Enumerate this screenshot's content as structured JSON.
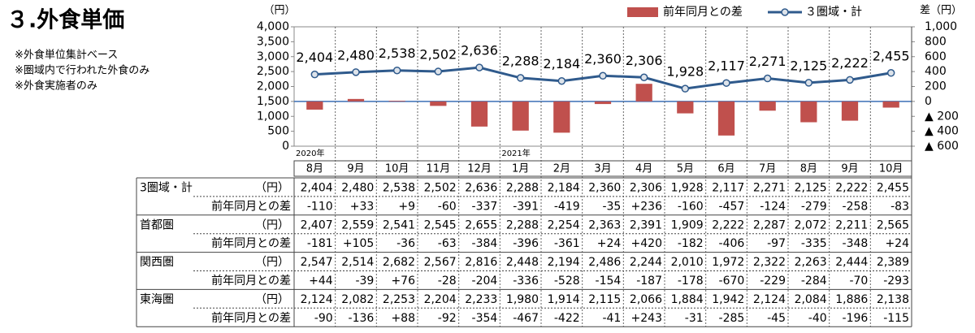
{
  "title": "３.外食単価",
  "notes": [
    "※外食単位集計ベース",
    "※圏域内で行われた外食のみ",
    "※外食実施者のみ"
  ],
  "chart_data": {
    "type": "combo",
    "y_label": "（円）",
    "y2_label": "差（円）",
    "categories": [
      "8月",
      "9月",
      "10月",
      "11月",
      "12月",
      "1月",
      "2月",
      "3月",
      "4月",
      "5月",
      "6月",
      "7月",
      "8月",
      "9月",
      "10月"
    ],
    "years": [
      "2020年",
      null,
      null,
      null,
      null,
      "2021年",
      null,
      null,
      null,
      null,
      null,
      null,
      null,
      null,
      null
    ],
    "ylim": [
      0,
      4000
    ],
    "yticks": [
      0,
      500,
      {
        "value": 1000,
        "label": "1,000"
      },
      {
        "value": 1500,
        "label": "1,500"
      },
      {
        "value": 2000,
        "label": "2,000"
      },
      {
        "value": 2500,
        "label": "2,500"
      },
      {
        "value": 3000,
        "label": "3,000"
      },
      {
        "value": 3500,
        "label": "3,500"
      },
      {
        "value": 4000,
        "label": "4,000"
      }
    ],
    "y2lim": [
      -600,
      1000
    ],
    "y2ticks": [
      {
        "value": 1000,
        "label": "1,000"
      },
      800,
      600,
      400,
      200,
      0,
      {
        "value": -200,
        "label": "▲ 200"
      },
      {
        "value": -400,
        "label": "▲ 400"
      },
      {
        "value": -600,
        "label": "▲ 600"
      }
    ],
    "series": [
      {
        "name": "前年同月との差",
        "type": "bar",
        "axis": "y2",
        "color": "#c0504d",
        "values": [
          -110,
          33,
          9,
          -60,
          -337,
          -391,
          -419,
          -35,
          236,
          -160,
          -457,
          -124,
          -279,
          -258,
          -83
        ]
      },
      {
        "name": "３圏域・計",
        "type": "line",
        "color": "#2f5a8c",
        "values": [
          2404,
          2480,
          2538,
          2502,
          2636,
          2288,
          2184,
          2360,
          2306,
          1928,
          2117,
          2271,
          2125,
          2222,
          2455
        ],
        "value_labels": [
          "2,404",
          "2,480",
          "2,538",
          "2,502",
          "2,636",
          "2,288",
          "2,184",
          "2,360",
          "2,306",
          "1,928",
          "2,117",
          "2,271",
          "2,125",
          "2,222",
          "2,455"
        ]
      }
    ]
  },
  "table": {
    "rows": [
      {
        "label": "3圏域・計",
        "unit": "（円）",
        "cells": [
          "2,404",
          "2,480",
          "2,538",
          "2,502",
          "2,636",
          "2,288",
          "2,184",
          "2,360",
          "2,306",
          "1,928",
          "2,117",
          "2,271",
          "2,125",
          "2,222",
          "2,455"
        ]
      },
      {
        "label": "前年同月との差",
        "cells": [
          "-110",
          "+33",
          "+9",
          "-60",
          "-337",
          "-391",
          "-419",
          "-35",
          "+236",
          "-160",
          "-457",
          "-124",
          "-279",
          "-258",
          "-83"
        ]
      },
      {
        "label": "首都圏",
        "unit": "（円）",
        "cells": [
          "2,407",
          "2,559",
          "2,541",
          "2,545",
          "2,655",
          "2,288",
          "2,254",
          "2,363",
          "2,391",
          "1,909",
          "2,222",
          "2,287",
          "2,072",
          "2,211",
          "2,565"
        ]
      },
      {
        "label": "前年同月との差",
        "cells": [
          "-181",
          "+105",
          "-36",
          "-63",
          "-384",
          "-396",
          "-361",
          "+24",
          "+420",
          "-182",
          "-406",
          "-97",
          "-335",
          "-348",
          "+24"
        ]
      },
      {
        "label": "関西圏",
        "unit": "（円）",
        "cells": [
          "2,547",
          "2,514",
          "2,682",
          "2,567",
          "2,816",
          "2,448",
          "2,194",
          "2,486",
          "2,244",
          "2,010",
          "1,972",
          "2,322",
          "2,263",
          "2,444",
          "2,389"
        ]
      },
      {
        "label": "前年同月との差",
        "cells": [
          "+44",
          "-39",
          "+76",
          "-28",
          "-204",
          "-336",
          "-528",
          "-154",
          "-187",
          "-178",
          "-670",
          "-229",
          "-284",
          "-70",
          "-293"
        ]
      },
      {
        "label": "東海圏",
        "unit": "（円）",
        "cells": [
          "2,124",
          "2,082",
          "2,253",
          "2,204",
          "2,233",
          "1,980",
          "1,914",
          "2,115",
          "2,066",
          "1,884",
          "1,942",
          "2,124",
          "2,084",
          "1,886",
          "2,138"
        ]
      },
      {
        "label": "前年同月との差",
        "cells": [
          "-90",
          "-136",
          "+88",
          "-92",
          "-354",
          "-467",
          "-422",
          "-41",
          "+243",
          "-31",
          "-285",
          "-45",
          "-40",
          "-196",
          "-115"
        ]
      }
    ]
  }
}
